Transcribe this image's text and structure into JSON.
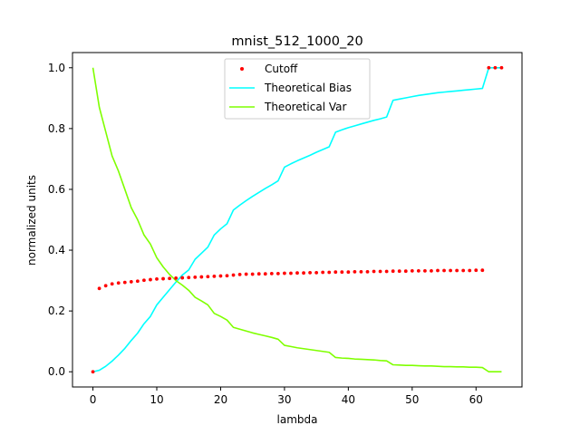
{
  "chart_data": {
    "type": "line",
    "title": "mnist_512_1000_20",
    "xlabel": "lambda",
    "ylabel": "normalized units",
    "xlim": [
      -3.2,
      67.2
    ],
    "ylim": [
      -0.05,
      1.05
    ],
    "xticks": [
      0,
      10,
      20,
      30,
      40,
      50,
      60
    ],
    "yticks": [
      0.0,
      0.2,
      0.4,
      0.6,
      0.8,
      1.0
    ],
    "xtick_labels": [
      "0",
      "10",
      "20",
      "30",
      "40",
      "50",
      "60"
    ],
    "ytick_labels": [
      "0.0",
      "0.2",
      "0.4",
      "0.6",
      "0.8",
      "1.0"
    ],
    "grid": false,
    "legend_position": "top-center",
    "series": [
      {
        "name": "Cutoff",
        "kind": "scatter",
        "color": "#ff0000",
        "x": [
          0,
          1,
          2,
          3,
          4,
          5,
          6,
          7,
          8,
          9,
          10,
          11,
          12,
          13,
          14,
          15,
          16,
          17,
          18,
          19,
          20,
          21,
          22,
          23,
          24,
          25,
          26,
          27,
          28,
          29,
          30,
          31,
          32,
          33,
          34,
          35,
          36,
          37,
          38,
          39,
          40,
          41,
          42,
          43,
          44,
          45,
          46,
          47,
          48,
          49,
          50,
          51,
          52,
          53,
          54,
          55,
          56,
          57,
          58,
          59,
          60,
          61,
          62,
          63,
          64
        ],
        "y": [
          0.0,
          0.274,
          0.283,
          0.289,
          0.292,
          0.294,
          0.296,
          0.298,
          0.301,
          0.303,
          0.305,
          0.306,
          0.307,
          0.308,
          0.309,
          0.31,
          0.311,
          0.312,
          0.313,
          0.314,
          0.315,
          0.316,
          0.318,
          0.32,
          0.321,
          0.321,
          0.322,
          0.322,
          0.323,
          0.323,
          0.324,
          0.324,
          0.325,
          0.325,
          0.326,
          0.326,
          0.327,
          0.327,
          0.328,
          0.328,
          0.328,
          0.329,
          0.329,
          0.329,
          0.33,
          0.33,
          0.33,
          0.331,
          0.331,
          0.331,
          0.332,
          0.332,
          0.332,
          0.332,
          0.333,
          0.333,
          0.333,
          0.333,
          0.333,
          0.333,
          0.334,
          0.334,
          1.0,
          1.0,
          1.0
        ]
      },
      {
        "name": "Theoretical Bias",
        "kind": "line",
        "color": "#00ffff",
        "x": [
          0,
          1,
          2,
          3,
          4,
          5,
          6,
          7,
          8,
          9,
          10,
          11,
          12,
          13,
          14,
          15,
          16,
          17,
          18,
          19,
          20,
          21,
          22,
          23,
          24,
          25,
          26,
          27,
          28,
          29,
          30,
          31,
          32,
          33,
          34,
          35,
          36,
          37,
          38,
          39,
          40,
          41,
          42,
          43,
          44,
          45,
          46,
          47,
          48,
          49,
          50,
          51,
          52,
          53,
          54,
          55,
          56,
          57,
          58,
          59,
          60,
          61,
          62,
          63,
          64
        ],
        "y": [
          0.0,
          0.005,
          0.018,
          0.035,
          0.055,
          0.077,
          0.103,
          0.127,
          0.158,
          0.182,
          0.22,
          0.245,
          0.27,
          0.295,
          0.318,
          0.335,
          0.37,
          0.39,
          0.41,
          0.45,
          0.47,
          0.487,
          0.532,
          0.548,
          0.563,
          0.577,
          0.59,
          0.603,
          0.615,
          0.628,
          0.673,
          0.684,
          0.694,
          0.703,
          0.712,
          0.722,
          0.731,
          0.74,
          0.788,
          0.796,
          0.803,
          0.809,
          0.815,
          0.821,
          0.827,
          0.832,
          0.838,
          0.893,
          0.897,
          0.901,
          0.905,
          0.909,
          0.912,
          0.915,
          0.918,
          0.92,
          0.922,
          0.924,
          0.926,
          0.928,
          0.93,
          0.932,
          1.0,
          1.0,
          1.0
        ]
      },
      {
        "name": "Theoretical Var",
        "kind": "line",
        "color": "#7fff00",
        "x": [
          0,
          1,
          2,
          3,
          4,
          5,
          6,
          7,
          8,
          9,
          10,
          11,
          12,
          13,
          14,
          15,
          16,
          17,
          18,
          19,
          20,
          21,
          22,
          23,
          24,
          25,
          26,
          27,
          28,
          29,
          30,
          31,
          32,
          33,
          34,
          35,
          36,
          37,
          38,
          39,
          40,
          41,
          42,
          43,
          44,
          45,
          46,
          47,
          48,
          49,
          50,
          51,
          52,
          53,
          54,
          55,
          56,
          57,
          58,
          59,
          60,
          61,
          62,
          63,
          64
        ],
        "y": [
          1.0,
          0.87,
          0.79,
          0.71,
          0.66,
          0.6,
          0.54,
          0.5,
          0.45,
          0.42,
          0.375,
          0.345,
          0.32,
          0.3,
          0.285,
          0.268,
          0.245,
          0.233,
          0.22,
          0.192,
          0.182,
          0.17,
          0.146,
          0.14,
          0.134,
          0.128,
          0.123,
          0.118,
          0.113,
          0.107,
          0.087,
          0.083,
          0.079,
          0.076,
          0.073,
          0.07,
          0.067,
          0.064,
          0.047,
          0.045,
          0.044,
          0.042,
          0.041,
          0.04,
          0.039,
          0.037,
          0.036,
          0.023,
          0.022,
          0.021,
          0.021,
          0.02,
          0.019,
          0.019,
          0.018,
          0.017,
          0.017,
          0.016,
          0.016,
          0.015,
          0.015,
          0.014,
          0.0,
          0.0,
          0.0
        ]
      }
    ]
  }
}
